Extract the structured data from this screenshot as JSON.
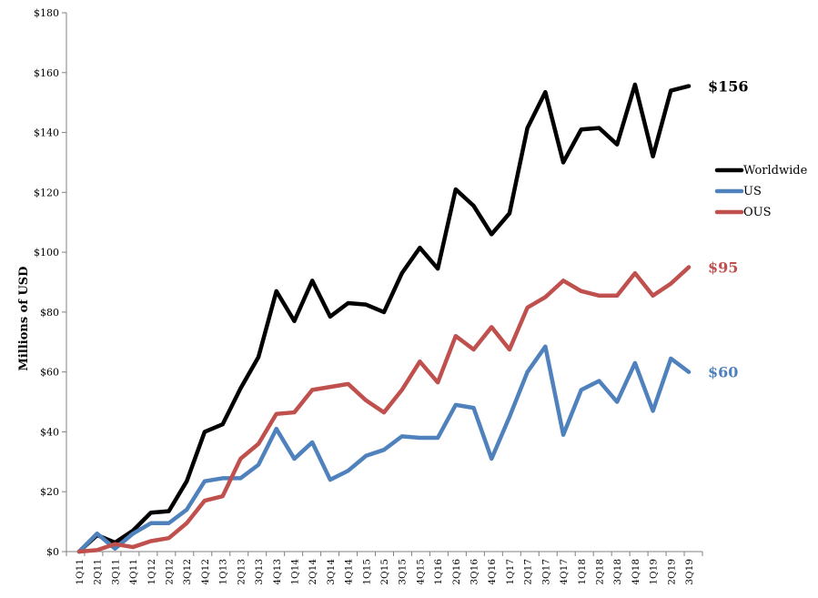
{
  "chart_data": {
    "type": "line",
    "title": "",
    "xlabel": "",
    "ylabel": "Millions of USD",
    "ylim": [
      0,
      180
    ],
    "yticks": [
      0,
      20,
      40,
      60,
      80,
      100,
      120,
      140,
      160,
      180
    ],
    "ytick_labels": [
      "$0",
      "$20",
      "$40",
      "$60",
      "$80",
      "$100",
      "$120",
      "$140",
      "$160",
      "$180"
    ],
    "grid": false,
    "legend_position": "right",
    "categories": [
      "1Q11",
      "2Q11",
      "3Q11",
      "4Q11",
      "1Q12",
      "2Q12",
      "3Q12",
      "4Q12",
      "1Q13",
      "2Q13",
      "3Q13",
      "4Q13",
      "1Q14",
      "2Q14",
      "3Q14",
      "4Q14",
      "1Q15",
      "2Q15",
      "3Q15",
      "4Q15",
      "1Q16",
      "2Q16",
      "3Q16",
      "4Q16",
      "1Q17",
      "2Q17",
      "3Q17",
      "4Q17",
      "1Q18",
      "2Q18",
      "3Q18",
      "4Q18",
      "1Q19",
      "2Q19",
      "3Q19"
    ],
    "series": [
      {
        "name": "Worldwide",
        "color": "#000000",
        "values": [
          0,
          5.5,
          3,
          7,
          13,
          13.5,
          23.5,
          40,
          42.5,
          54.5,
          65,
          87,
          77,
          90.5,
          78.5,
          83,
          82.5,
          80,
          93,
          101.5,
          94.5,
          121,
          115.5,
          106,
          113,
          141.5,
          153.5,
          130,
          141,
          141.5,
          136,
          156,
          132,
          154,
          155.5
        ],
        "end_label": "$156"
      },
      {
        "name": "US",
        "color": "#4f81bd",
        "values": [
          0,
          6,
          1,
          6,
          9.5,
          9.5,
          14,
          23.5,
          24.5,
          24.5,
          29,
          41,
          31,
          36.5,
          24,
          27,
          32,
          34,
          38.5,
          38,
          38,
          49,
          48,
          31,
          45,
          60,
          68.5,
          39,
          54,
          57,
          50,
          63,
          47,
          64.5,
          60
        ],
        "end_label": "$60"
      },
      {
        "name": "OUS",
        "color": "#c0504d",
        "values": [
          0,
          0.5,
          2.5,
          1.5,
          3.5,
          4.5,
          9.5,
          17,
          18.5,
          31,
          36,
          46,
          46.5,
          54,
          55,
          56,
          50.5,
          46.5,
          54,
          63.5,
          56.5,
          72,
          67.5,
          75,
          67.5,
          81.5,
          85,
          90.5,
          87,
          85.5,
          85.5,
          93,
          85.5,
          89.5,
          95
        ],
        "end_label": "$95"
      }
    ]
  }
}
